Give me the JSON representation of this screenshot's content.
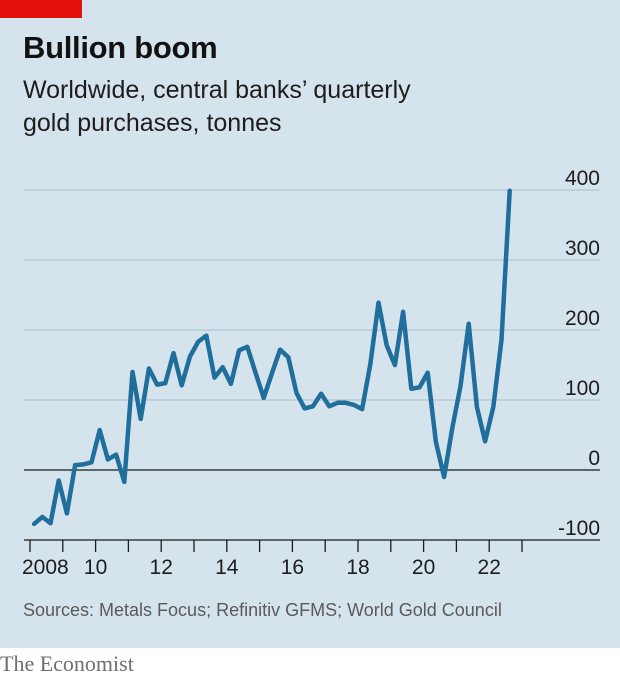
{
  "header": {
    "title": "Bullion boom",
    "subtitle_line1": "Worldwide, central banks’ quarterly",
    "subtitle_line2": "gold purchases, tonnes"
  },
  "footer": {
    "source": "Sources: Metals Focus; Refinitiv GFMS; World Gold Council",
    "brand": "The Economist"
  },
  "colors": {
    "accent_red": "#e3120b",
    "line": "#1f6e9c",
    "background": "#d5e4ec"
  },
  "chart_data": {
    "type": "line",
    "title": "Bullion boom",
    "subtitle": "Worldwide, central banks’ quarterly gold purchases, tonnes",
    "xlabel": "",
    "ylabel": "",
    "xlim": [
      2008,
      2023
    ],
    "ylim": [
      -100,
      400
    ],
    "y_axis_position": "right",
    "grid": "horizontal",
    "x_ticks": [
      2008,
      2009,
      2010,
      2011,
      2012,
      2013,
      2014,
      2015,
      2016,
      2017,
      2018,
      2019,
      2020,
      2021,
      2022,
      2023
    ],
    "x_tick_labels": [
      {
        "value": 2008,
        "label": "2008"
      },
      {
        "value": 2010,
        "label": "10"
      },
      {
        "value": 2012,
        "label": "12"
      },
      {
        "value": 2014,
        "label": "14"
      },
      {
        "value": 2016,
        "label": "16"
      },
      {
        "value": 2018,
        "label": "18"
      },
      {
        "value": 2020,
        "label": "20"
      },
      {
        "value": 2022,
        "label": "22"
      }
    ],
    "y_ticks": [
      {
        "value": 400,
        "label": "400"
      },
      {
        "value": 300,
        "label": "300"
      },
      {
        "value": 200,
        "label": "200"
      },
      {
        "value": 100,
        "label": "100"
      },
      {
        "value": 0,
        "label": "0"
      },
      {
        "value": -100,
        "label": "-100"
      }
    ],
    "series": [
      {
        "points": [
          [
            2008.125,
            -77
          ],
          [
            2008.375,
            -67
          ],
          [
            2008.625,
            -76
          ],
          [
            2008.875,
            -15
          ],
          [
            2009.125,
            -62
          ],
          [
            2009.375,
            7
          ],
          [
            2009.625,
            8
          ],
          [
            2009.875,
            11
          ],
          [
            2010.125,
            57
          ],
          [
            2010.375,
            15
          ],
          [
            2010.625,
            22
          ],
          [
            2010.875,
            -17
          ],
          [
            2011.125,
            140
          ],
          [
            2011.375,
            73
          ],
          [
            2011.625,
            145
          ],
          [
            2011.875,
            122
          ],
          [
            2012.125,
            124
          ],
          [
            2012.375,
            167
          ],
          [
            2012.625,
            121
          ],
          [
            2012.875,
            162
          ],
          [
            2013.125,
            183
          ],
          [
            2013.375,
            192
          ],
          [
            2013.625,
            132
          ],
          [
            2013.875,
            147
          ],
          [
            2014.125,
            123
          ],
          [
            2014.375,
            171
          ],
          [
            2014.625,
            176
          ],
          [
            2014.875,
            139
          ],
          [
            2015.125,
            103
          ],
          [
            2015.375,
            138
          ],
          [
            2015.625,
            172
          ],
          [
            2015.875,
            161
          ],
          [
            2016.125,
            110
          ],
          [
            2016.375,
            88
          ],
          [
            2016.625,
            91
          ],
          [
            2016.875,
            109
          ],
          [
            2017.125,
            91
          ],
          [
            2017.375,
            96
          ],
          [
            2017.625,
            96
          ],
          [
            2017.875,
            93
          ],
          [
            2018.125,
            87
          ],
          [
            2018.375,
            151
          ],
          [
            2018.625,
            239
          ],
          [
            2018.875,
            178
          ],
          [
            2019.125,
            150
          ],
          [
            2019.375,
            226
          ],
          [
            2019.625,
            116
          ],
          [
            2019.875,
            118
          ],
          [
            2020.125,
            139
          ],
          [
            2020.375,
            40
          ],
          [
            2020.625,
            -10
          ],
          [
            2020.875,
            60
          ],
          [
            2021.125,
            120
          ],
          [
            2021.375,
            209
          ],
          [
            2021.625,
            90
          ],
          [
            2021.875,
            41
          ],
          [
            2022.125,
            90
          ],
          [
            2022.375,
            186
          ],
          [
            2022.625,
            399
          ]
        ]
      }
    ]
  }
}
